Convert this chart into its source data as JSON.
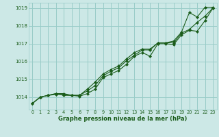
{
  "xlabel": "Graphe pression niveau de la mer (hPa)",
  "x": [
    0,
    1,
    2,
    3,
    4,
    5,
    6,
    7,
    8,
    9,
    10,
    11,
    12,
    13,
    14,
    15,
    16,
    17,
    18,
    19,
    20,
    21,
    22,
    23
  ],
  "line1": [
    1013.65,
    1014.0,
    1014.1,
    1014.15,
    1014.15,
    1014.1,
    1014.05,
    1014.2,
    1014.45,
    1015.1,
    1015.3,
    1015.5,
    1015.85,
    1016.3,
    1016.5,
    1016.3,
    1017.0,
    1017.0,
    1016.95,
    1017.5,
    1017.75,
    1017.7,
    1018.3,
    1019.0
  ],
  "line2": [
    1013.65,
    1014.0,
    1014.1,
    1014.2,
    1014.2,
    1014.1,
    1014.1,
    1014.35,
    1014.65,
    1015.2,
    1015.45,
    1015.65,
    1016.05,
    1016.35,
    1016.65,
    1016.65,
    1017.05,
    1017.05,
    1017.05,
    1017.6,
    1017.8,
    1018.2,
    1018.55,
    1019.0
  ],
  "line3": [
    1013.65,
    1014.0,
    1014.1,
    1014.2,
    1014.1,
    1014.1,
    1014.1,
    1014.45,
    1014.85,
    1015.3,
    1015.55,
    1015.75,
    1016.15,
    1016.5,
    1016.7,
    1016.7,
    1017.05,
    1017.05,
    1017.15,
    1017.65,
    1018.75,
    1018.5,
    1019.05,
    1019.05
  ],
  "bg_color": "#cce8e6",
  "grid_color": "#99ccc8",
  "line_color": "#1a5c1a",
  "marker_color": "#1a5c1a",
  "tick_label_color": "#1a5c1a",
  "xlabel_color": "#1a5c1a",
  "ylim": [
    1013.3,
    1019.3
  ],
  "yticks": [
    1014,
    1015,
    1016,
    1017,
    1018,
    1019
  ],
  "xlim": [
    -0.5,
    23.5
  ],
  "xticks": [
    0,
    1,
    2,
    3,
    4,
    5,
    6,
    7,
    8,
    9,
    10,
    11,
    12,
    13,
    14,
    15,
    16,
    17,
    18,
    19,
    20,
    21,
    22,
    23
  ]
}
